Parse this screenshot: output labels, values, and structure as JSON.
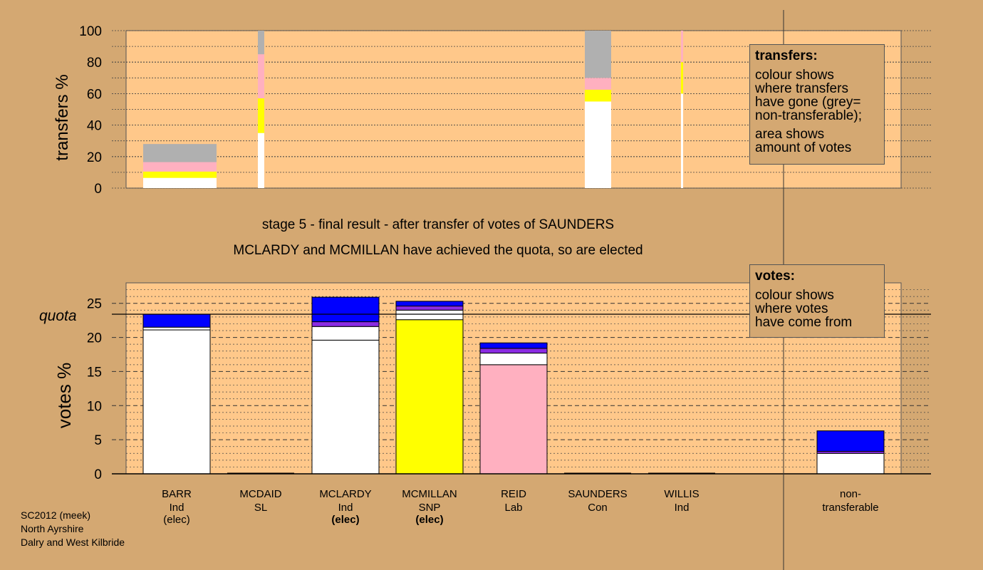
{
  "chart_data": [
    {
      "type": "bar",
      "ylabel": "transfers %",
      "ylim": [
        0,
        100
      ],
      "yticks": [
        0,
        20,
        40,
        60,
        80,
        100
      ],
      "grid": "dotted",
      "colors": {
        "white": "#ffffff",
        "yellow": "#ffff00",
        "pink": "#ffb0c0",
        "grey": "#b0b0b0",
        "bg": "#ffc88a"
      },
      "bars": [
        {
          "name": "BARR",
          "width": "wide",
          "segments": [
            {
              "color": "white",
              "value": 6.5
            },
            {
              "color": "yellow",
              "value": 4
            },
            {
              "color": "pink",
              "value": 6
            },
            {
              "color": "grey",
              "value": 11.5
            }
          ]
        },
        {
          "name": "MCDAID",
          "width": "thin",
          "segments": [
            {
              "color": "white",
              "value": 35
            },
            {
              "color": "yellow",
              "value": 22
            },
            {
              "color": "pink",
              "value": 28
            },
            {
              "color": "grey",
              "value": 15
            }
          ]
        },
        {
          "name": "SAUNDERS",
          "width": "wide",
          "segments": [
            {
              "color": "white",
              "value": 55
            },
            {
              "color": "yellow",
              "value": 7.5
            },
            {
              "color": "pink",
              "value": 7.5
            },
            {
              "color": "grey",
              "value": 30
            }
          ]
        },
        {
          "name": "WILLIS",
          "width": "hairline",
          "segments": [
            {
              "color": "white",
              "value": 60
            },
            {
              "color": "yellow",
              "value": 20
            },
            {
              "color": "pink",
              "value": 20
            }
          ]
        }
      ]
    },
    {
      "type": "bar",
      "ylabel": "votes %",
      "ylim": [
        0,
        28
      ],
      "yticks": [
        0,
        5,
        10,
        15,
        20,
        25
      ],
      "quota": 23.4,
      "quota_label": "quota",
      "colors": {
        "white": "#ffffff",
        "yellow": "#ffff00",
        "pink": "#ffb0c0",
        "purple": "#8a2be2",
        "blue": "#0000ff"
      },
      "categories": [
        {
          "name": "BARR",
          "party": "Ind",
          "elected": true
        },
        {
          "name": "MCDAID",
          "party": "SL",
          "elected": false
        },
        {
          "name": "MCLARDY",
          "party": "Ind",
          "elected": true
        },
        {
          "name": "MCMILLAN",
          "party": "SNP",
          "elected": true
        },
        {
          "name": "REID",
          "party": "Lab",
          "elected": false
        },
        {
          "name": "SAUNDERS",
          "party": "Con",
          "elected": false
        },
        {
          "name": "WILLIS",
          "party": "Ind",
          "elected": false
        },
        {
          "name": "non-\ntransferable",
          "party": "",
          "elected": false
        }
      ],
      "bars": [
        {
          "name": "BARR",
          "segments": [
            {
              "color": "white",
              "value": 21.1
            },
            {
              "color": "white",
              "value": 0.4
            },
            {
              "color": "blue",
              "value": 1.9
            }
          ]
        },
        {
          "name": "MCDAID",
          "segments": []
        },
        {
          "name": "MCLARDY",
          "segments": [
            {
              "color": "white",
              "value": 19.6
            },
            {
              "color": "white",
              "value": 2.0
            },
            {
              "color": "purple",
              "value": 0.7
            },
            {
              "color": "blue",
              "value": 3.6
            }
          ]
        },
        {
          "name": "MCMILLAN",
          "segments": [
            {
              "color": "yellow",
              "value": 22.6
            },
            {
              "color": "white",
              "value": 1.4
            },
            {
              "color": "purple",
              "value": 0.6
            },
            {
              "color": "blue",
              "value": 0.7
            }
          ]
        },
        {
          "name": "REID",
          "segments": [
            {
              "color": "pink",
              "value": 16.0
            },
            {
              "color": "white",
              "value": 1.7
            },
            {
              "color": "purple",
              "value": 0.7
            },
            {
              "color": "blue",
              "value": 0.8
            }
          ]
        },
        {
          "name": "SAUNDERS",
          "segments": []
        },
        {
          "name": "WILLIS",
          "segments": []
        },
        {
          "name": "non-transferable",
          "segments": [
            {
              "color": "white",
              "value": 3.0
            },
            {
              "color": "purple",
              "value": 0.3
            },
            {
              "color": "blue",
              "value": 3.0
            }
          ]
        }
      ]
    }
  ],
  "titles": {
    "stage": "stage 5 - final result - after transfer of votes of SAUNDERS",
    "elected": "MCLARDY and MCMILLAN have achieved the quota, so are elected"
  },
  "legends": {
    "transfers": {
      "title": "transfers:",
      "lines1": [
        "colour shows",
        "where transfers",
        "have gone (grey=",
        "non-transferable);"
      ],
      "lines2": [
        "area shows",
        "amount of votes"
      ]
    },
    "votes": {
      "title": "votes:",
      "lines": [
        "colour shows",
        "where votes",
        "have come from"
      ]
    }
  },
  "elected_label": "(elec)",
  "footer": [
    "SC2012 (meek)",
    "North Ayrshire",
    "Dalry and West Kilbride"
  ]
}
